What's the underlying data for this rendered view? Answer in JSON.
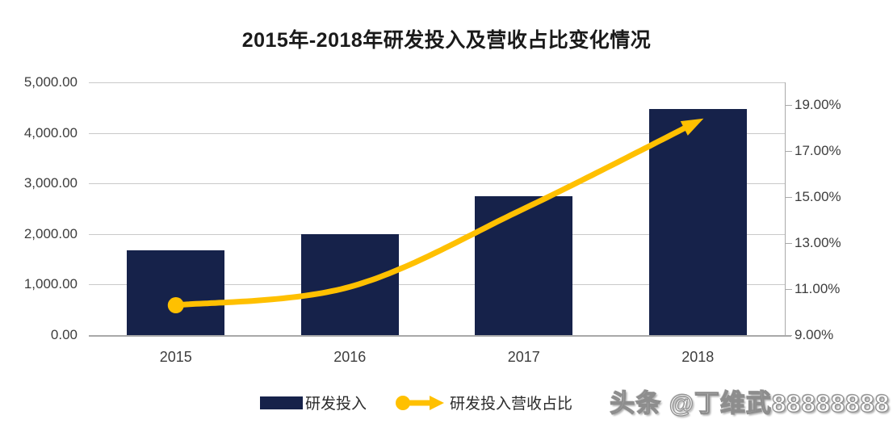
{
  "title": "2015年-2018年研发投入及营收占比变化情况",
  "legend": {
    "bar_label": "研发投入",
    "line_label": "研发投入营收占比"
  },
  "watermark": "头条 @丁维武88888888",
  "colors": {
    "bar": "#16224a",
    "line": "#ffc000",
    "grid": "#c9c9c9",
    "axis_line": "#a9a9a9",
    "tick_text": "#3d3d3d",
    "title_text": "#1a1a1a"
  },
  "chart_data": {
    "type": "bar+line",
    "categories": [
      "2015",
      "2016",
      "2017",
      "2018"
    ],
    "series": [
      {
        "name": "研发投入",
        "kind": "bar",
        "axis": "left",
        "values": [
          1670,
          1990,
          2740,
          4470
        ]
      },
      {
        "name": "研发投入营收占比",
        "kind": "line",
        "axis": "right",
        "unit": "%",
        "values": [
          10.3,
          11.1,
          14.5,
          18.3
        ]
      }
    ],
    "left_axis": {
      "min": 0,
      "max": 5000,
      "ticks": [
        {
          "v": 5000,
          "label": "5,000.00"
        },
        {
          "v": 4000,
          "label": "4,000.00"
        },
        {
          "v": 3000,
          "label": "3,000.00"
        },
        {
          "v": 2000,
          "label": "2,000.00"
        },
        {
          "v": 1000,
          "label": "1,000.00"
        },
        {
          "v": 0,
          "label": "0.00"
        }
      ]
    },
    "right_axis": {
      "min": 9,
      "max": 20,
      "ticks": [
        {
          "v": 19,
          "label": "19.00%"
        },
        {
          "v": 17,
          "label": "17.00%"
        },
        {
          "v": 15,
          "label": "15.00%"
        },
        {
          "v": 13,
          "label": "13.00%"
        },
        {
          "v": 11,
          "label": "11.00%"
        },
        {
          "v": 9,
          "label": "9.00%"
        }
      ]
    },
    "grid": true,
    "legend_position": "bottom"
  }
}
